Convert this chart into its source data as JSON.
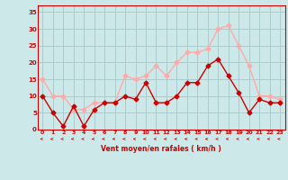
{
  "x": [
    0,
    1,
    2,
    3,
    4,
    5,
    6,
    7,
    8,
    9,
    10,
    11,
    12,
    13,
    14,
    15,
    16,
    17,
    18,
    19,
    20,
    21,
    22,
    23
  ],
  "wind_avg": [
    10,
    5,
    1,
    7,
    1,
    6,
    8,
    8,
    10,
    9,
    14,
    8,
    8,
    10,
    14,
    14,
    19,
    21,
    16,
    11,
    5,
    9,
    8,
    8
  ],
  "wind_gust": [
    15,
    10,
    10,
    6,
    6,
    8,
    8,
    8,
    16,
    15,
    16,
    19,
    16,
    20,
    23,
    23,
    24,
    30,
    31,
    25,
    19,
    10,
    10,
    9
  ],
  "avg_color": "#cc0000",
  "gust_color": "#ffaaaa",
  "bg_color": "#cce8e8",
  "grid_color": "#aacccc",
  "xlabel": "Vent moyen/en rafales ( km/h )",
  "xlabel_color": "#cc0000",
  "ylabel_color": "#cc0000",
  "yticks": [
    0,
    5,
    10,
    15,
    20,
    25,
    30,
    35
  ],
  "ylim": [
    0,
    37
  ],
  "xlim": [
    -0.5,
    23.5
  ]
}
